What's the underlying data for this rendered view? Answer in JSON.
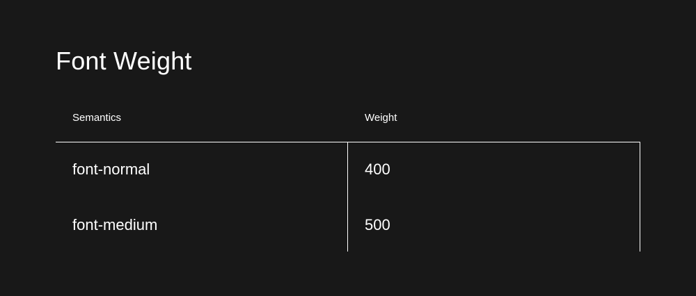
{
  "title": "Font Weight",
  "table": {
    "headers": [
      "Semantics",
      "Weight"
    ],
    "rows": [
      {
        "semantic": "font-normal",
        "weight": "400"
      },
      {
        "semantic": "font-medium",
        "weight": "500"
      }
    ]
  },
  "colors": {
    "background": "#181818",
    "text": "#ffffff",
    "rule": "#ffffff"
  }
}
